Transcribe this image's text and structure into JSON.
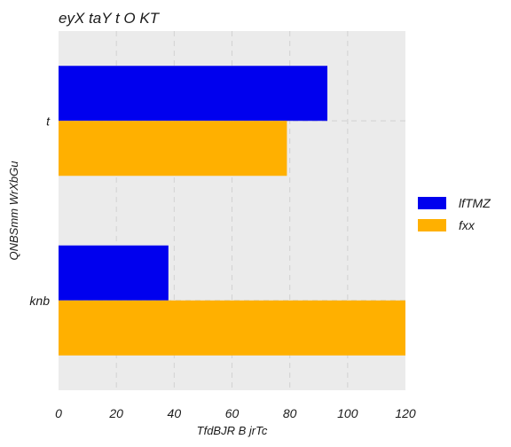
{
  "chart_data": {
    "type": "bar",
    "orientation": "horizontal",
    "title": "eyX taY t O KT",
    "xlabel": "TfdBJR B jrTc",
    "ylabel": "QNBSmm WrXbGu",
    "categories": [
      "t",
      "knb"
    ],
    "series": [
      {
        "name": "lfTMZ",
        "values": [
          93,
          38
        ],
        "color": "#0000ee"
      },
      {
        "name": "fxx",
        "values": [
          79,
          121
        ],
        "color": "#ffb000"
      }
    ],
    "xlim": [
      0,
      120
    ],
    "xticks": [
      "0",
      "20",
      "40",
      "60",
      "80",
      "100",
      "120"
    ],
    "grid": true,
    "legend_position": "right"
  }
}
